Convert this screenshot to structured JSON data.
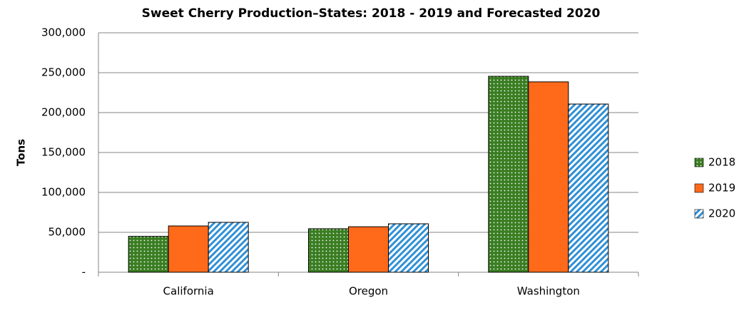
{
  "chart_data": {
    "type": "bar",
    "title": "Sweet Cherry Production–States: 2018  - 2019  and Forecasted 2020",
    "y_label": "Tons",
    "categories": [
      "California",
      "Oregon",
      "Washington"
    ],
    "series": [
      {
        "name": "2018",
        "color": "#3a7d22",
        "pattern": "dots",
        "values": [
          45000,
          54500,
          245500
        ]
      },
      {
        "name": "2019",
        "color": "#ff6a1a",
        "pattern": "solid",
        "values": [
          58000,
          57000,
          238500
        ]
      },
      {
        "name": "2020",
        "color": "#2e8fd6",
        "pattern": "stripes",
        "values": [
          62500,
          60700,
          210700
        ]
      }
    ],
    "ylim": [
      0,
      300000
    ],
    "yticks": [
      {
        "value": 0,
        "label": "-"
      },
      {
        "value": 50000,
        "label": "50,000"
      },
      {
        "value": 100000,
        "label": "100,000"
      },
      {
        "value": 150000,
        "label": "150,000"
      },
      {
        "value": 200000,
        "label": "200,000"
      },
      {
        "value": 250000,
        "label": "250,000"
      },
      {
        "value": 300000,
        "label": "300,000"
      }
    ],
    "grid": true,
    "legend": "right"
  }
}
